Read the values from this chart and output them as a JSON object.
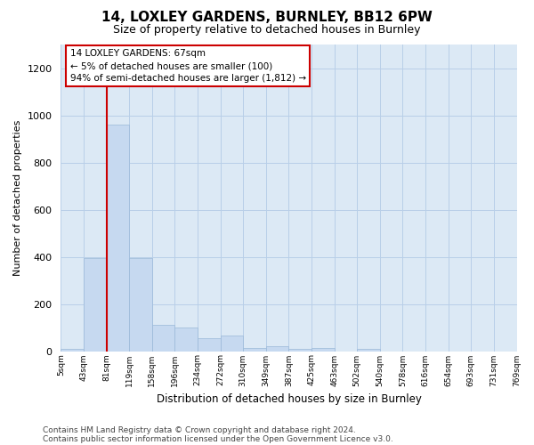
{
  "title": "14, LOXLEY GARDENS, BURNLEY, BB12 6PW",
  "subtitle": "Size of property relative to detached houses in Burnley",
  "xlabel": "Distribution of detached houses by size in Burnley",
  "ylabel": "Number of detached properties",
  "footnote1": "Contains HM Land Registry data © Crown copyright and database right 2024.",
  "footnote2": "Contains public sector information licensed under the Open Government Licence v3.0.",
  "annotation_line1": "14 LOXLEY GARDENS: 67sqm",
  "annotation_line2": "← 5% of detached houses are smaller (100)",
  "annotation_line3": "94% of semi-detached houses are larger (1,812) →",
  "bar_color": "#c6d9f0",
  "bar_edge_color": "#9ab8d8",
  "vline_color": "#cc0000",
  "vline_x": 2,
  "annotation_box_color": "#cc0000",
  "ylim": [
    0,
    1300
  ],
  "yticks": [
    0,
    200,
    400,
    600,
    800,
    1000,
    1200
  ],
  "bin_labels": [
    "5sqm",
    "43sqm",
    "81sqm",
    "119sqm",
    "158sqm",
    "196sqm",
    "234sqm",
    "272sqm",
    "310sqm",
    "349sqm",
    "387sqm",
    "425sqm",
    "463sqm",
    "502sqm",
    "540sqm",
    "578sqm",
    "616sqm",
    "654sqm",
    "693sqm",
    "731sqm",
    "769sqm"
  ],
  "bar_heights": [
    10,
    395,
    960,
    395,
    110,
    100,
    55,
    65,
    15,
    20,
    10,
    15,
    0,
    10,
    0,
    0,
    0,
    0,
    0,
    0
  ],
  "background_color": "#ffffff",
  "axes_bg_color": "#dce9f5",
  "grid_color": "#b8cfe8",
  "title_fontsize": 11,
  "subtitle_fontsize": 9,
  "footnote_fontsize": 6.5
}
